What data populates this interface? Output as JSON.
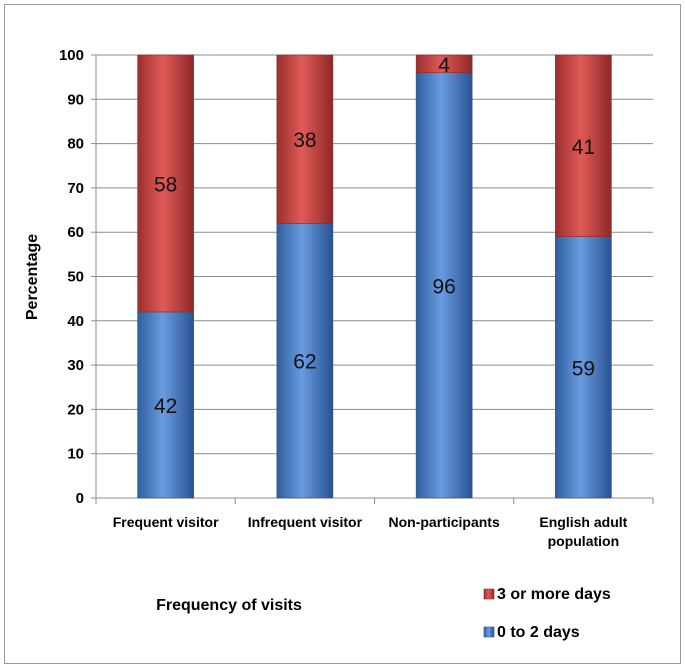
{
  "chart_data": {
    "type": "bar",
    "stacked": true,
    "categories": [
      [
        "Frequent visitor"
      ],
      [
        "Infrequent visitor"
      ],
      [
        "Non-participants"
      ],
      [
        "English adult",
        "population"
      ]
    ],
    "series": [
      {
        "name": "0 to 2 days",
        "values": [
          42,
          62,
          96,
          59
        ],
        "color": "#4f81bd"
      },
      {
        "name": "3 or more days",
        "values": [
          58,
          38,
          4,
          41
        ],
        "color": "#c0504d"
      }
    ],
    "ylabel": "Percentage",
    "xlabel": "Frequency of visits",
    "ylim": [
      0,
      100
    ],
    "yticks": [
      0,
      10,
      20,
      30,
      40,
      50,
      60,
      70,
      80,
      90,
      100
    ],
    "grid": true,
    "legend_position": "bottom-right"
  }
}
